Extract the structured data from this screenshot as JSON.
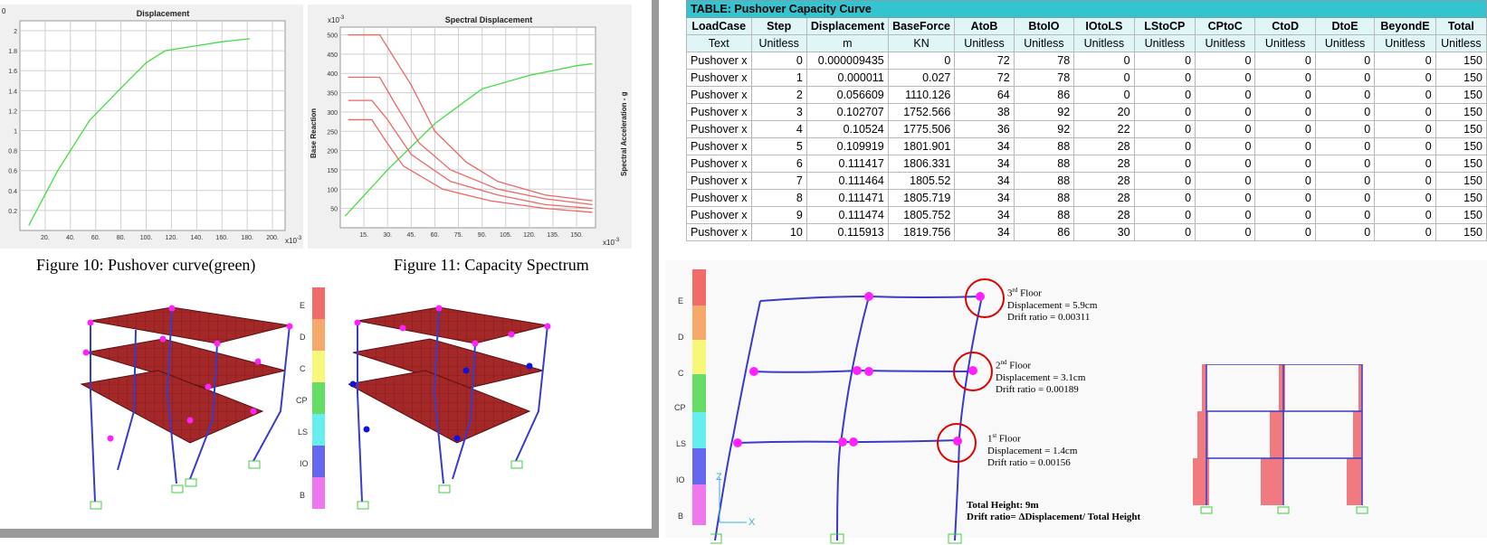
{
  "left_panel": {
    "fig10_caption": "Figure 10: Pushover curve(green)",
    "fig11_caption": "Figure 11: Capacity Spectrum",
    "chart1": {
      "title": "Displacement",
      "y_exp": "0",
      "x_exp": "x10",
      "x_exp_sup": "-3",
      "yticks": [
        "2",
        "1.8",
        "1.6",
        "1.4",
        "1.2",
        "1",
        "0.8",
        "0.6",
        "0.4",
        "0.2"
      ],
      "xticks": [
        "20",
        "40",
        "60",
        "80",
        "100",
        "120",
        "140",
        "160",
        "180",
        "200"
      ]
    },
    "chart2": {
      "title": "Spectral Displacement",
      "y_exp": "x10",
      "y_exp_sup": "-3",
      "x_exp": "x10",
      "x_exp_sup": "-3",
      "left_label": "Base Reaction",
      "right_label": "Spectral Acceleration - g",
      "yticks": [
        "500",
        "450",
        "400",
        "350",
        "300",
        "250",
        "200",
        "150",
        "100",
        "50"
      ],
      "xticks": [
        "15",
        "30",
        "45",
        "60",
        "75",
        "90",
        "105",
        "120",
        "135",
        "150"
      ]
    },
    "legend_labels": [
      "E",
      "D",
      "C",
      "CP",
      "LS",
      "IO",
      "B"
    ]
  },
  "chart_data": [
    {
      "type": "line",
      "title": "Displacement",
      "xlabel": "",
      "ylabel": "",
      "xlim": [
        0,
        210
      ],
      "ylim": [
        0,
        2.1
      ],
      "grid": true,
      "series": [
        {
          "color": "#44dd44",
          "x": [
            7,
            30,
            55,
            78,
            100,
            115,
            140,
            160,
            182
          ],
          "y": [
            0.05,
            0.6,
            1.1,
            1.4,
            1.68,
            1.8,
            1.85,
            1.89,
            1.92
          ]
        }
      ]
    },
    {
      "type": "line",
      "title": "Spectral Displacement",
      "xlabel": "",
      "ylabel": "",
      "xlim": [
        0,
        162
      ],
      "ylim": [
        0,
        520
      ],
      "grid": true,
      "series": [
        {
          "color": "#44dd44",
          "x": [
            3,
            30,
            60,
            90,
            120,
            150,
            160
          ],
          "y": [
            30,
            150,
            270,
            360,
            395,
            420,
            425
          ]
        },
        {
          "color": "#ee6666",
          "x": [
            5,
            25,
            45,
            60,
            80,
            100,
            130,
            160
          ],
          "y": [
            500,
            500,
            370,
            250,
            170,
            120,
            85,
            70
          ]
        },
        {
          "color": "#ee6666",
          "x": [
            5,
            25,
            35,
            50,
            70,
            100,
            130,
            160
          ],
          "y": [
            390,
            390,
            320,
            220,
            150,
            100,
            75,
            60
          ]
        },
        {
          "color": "#ee6666",
          "x": [
            5,
            20,
            30,
            45,
            70,
            100,
            130,
            160
          ],
          "y": [
            330,
            330,
            280,
            190,
            120,
            85,
            60,
            50
          ]
        },
        {
          "color": "#ee6666",
          "x": [
            5,
            20,
            28,
            40,
            65,
            95,
            130,
            160
          ],
          "y": [
            280,
            280,
            230,
            160,
            100,
            70,
            50,
            40
          ]
        }
      ]
    },
    {
      "type": "table",
      "title": "TABLE:  Pushover Capacity Curve",
      "headers": [
        "LoadCase",
        "Step",
        "Displacement",
        "BaseForce",
        "AtoB",
        "BtoIO",
        "IOtoLS",
        "LStoCP",
        "CPtoC",
        "CtoD",
        "DtoE",
        "BeyondE",
        "Total"
      ],
      "units": [
        "Text",
        "Unitless",
        "m",
        "KN",
        "Unitless",
        "Unitless",
        "Unitless",
        "Unitless",
        "Unitless",
        "Unitless",
        "Unitless",
        "Unitless",
        "Unitless"
      ],
      "rows": [
        [
          "Pushover x",
          "0",
          "0.000009435",
          "0",
          "72",
          "78",
          "0",
          "0",
          "0",
          "0",
          "0",
          "0",
          "150"
        ],
        [
          "Pushover x",
          "1",
          "0.000011",
          "0.027",
          "72",
          "78",
          "0",
          "0",
          "0",
          "0",
          "0",
          "0",
          "150"
        ],
        [
          "Pushover x",
          "2",
          "0.056609",
          "1110.126",
          "64",
          "86",
          "0",
          "0",
          "0",
          "0",
          "0",
          "0",
          "150"
        ],
        [
          "Pushover x",
          "3",
          "0.102707",
          "1752.566",
          "38",
          "92",
          "20",
          "0",
          "0",
          "0",
          "0",
          "0",
          "150"
        ],
        [
          "Pushover x",
          "4",
          "0.10524",
          "1775.506",
          "36",
          "92",
          "22",
          "0",
          "0",
          "0",
          "0",
          "0",
          "150"
        ],
        [
          "Pushover x",
          "5",
          "0.109919",
          "1801.901",
          "34",
          "88",
          "28",
          "0",
          "0",
          "0",
          "0",
          "0",
          "150"
        ],
        [
          "Pushover x",
          "6",
          "0.111417",
          "1806.331",
          "34",
          "88",
          "28",
          "0",
          "0",
          "0",
          "0",
          "0",
          "150"
        ],
        [
          "Pushover x",
          "7",
          "0.111464",
          "1805.52",
          "34",
          "88",
          "28",
          "0",
          "0",
          "0",
          "0",
          "0",
          "150"
        ],
        [
          "Pushover x",
          "8",
          "0.111471",
          "1805.719",
          "34",
          "88",
          "28",
          "0",
          "0",
          "0",
          "0",
          "0",
          "150"
        ],
        [
          "Pushover x",
          "9",
          "0.111474",
          "1805.752",
          "34",
          "88",
          "28",
          "0",
          "0",
          "0",
          "0",
          "0",
          "150"
        ],
        [
          "Pushover x",
          "10",
          "0.115913",
          "1819.756",
          "34",
          "86",
          "30",
          "0",
          "0",
          "0",
          "0",
          "0",
          "150"
        ]
      ]
    }
  ],
  "right_panel": {
    "legend_labels": [
      "E",
      "D",
      "C",
      "CP",
      "LS",
      "IO",
      "B"
    ],
    "floors": [
      {
        "name": "3",
        "sup": "rd",
        "suffix": " Floor",
        "disp": "Displacement = 5.9cm",
        "drift": "Drift ratio = 0.00311"
      },
      {
        "name": "2",
        "sup": "nd",
        "suffix": " Floor",
        "disp": "Displacement = 3.1cm",
        "drift": "Drift ratio = 0.00189"
      },
      {
        "name": "1",
        "sup": "st",
        "suffix": " Floor",
        "disp": "Displacement = 1.4cm",
        "drift": "Drift ratio = 0.00156"
      }
    ],
    "total_height": "Total Height: 9m",
    "drift_formula": "Drift ratio= ΔDisplacement/ Total Height",
    "axis_z": "Z",
    "axis_x": "X"
  },
  "colors": {
    "table_title_bg": "#33c4cf",
    "table_header_bg": "#dff5f6",
    "frame_blue": "#3a3acc",
    "hinge_magenta": "#ff22ff",
    "circle_red": "#dd0000",
    "slab_red": "#a52828"
  }
}
